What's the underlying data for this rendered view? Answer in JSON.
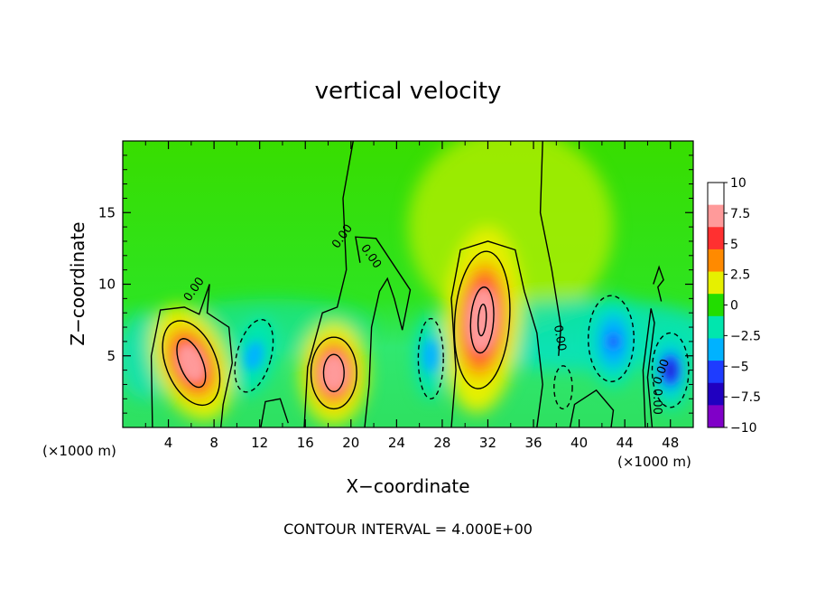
{
  "chart_data": {
    "type": "heatmap",
    "title": "vertical velocity",
    "xlabel": "X−coordinate",
    "ylabel": "Z−coordinate",
    "x_unit": "(×1000 m)",
    "y_unit": "(×1000 m)",
    "footnote": "CONTOUR INTERVAL = 4.000E+00",
    "xlim": [
      0,
      50
    ],
    "ylim": [
      0,
      20
    ],
    "x_ticks": [
      4,
      8,
      12,
      16,
      20,
      24,
      28,
      32,
      36,
      40,
      44,
      48
    ],
    "y_ticks": [
      5,
      10,
      15
    ],
    "colorbar": {
      "range": [
        -10,
        10
      ],
      "tick_values": [
        10,
        7.5,
        5,
        2.5,
        0,
        -2.5,
        -5,
        -7.5,
        -10
      ],
      "tick_labels": [
        "10",
        "7.5",
        "5",
        "2.5",
        "0",
        "−2.5",
        "−5",
        "−7.5",
        "−10"
      ],
      "colors": [
        "#ffffff",
        "#ff9a9a",
        "#ff3030",
        "#ff8a00",
        "#e6f000",
        "#22dd00",
        "#00e6ae",
        "#00b2ff",
        "#1e3cff",
        "#2000c0",
        "#8000c8"
      ]
    },
    "contour_interval": 4,
    "contour_labels": [
      "0.00"
    ],
    "features": [
      {
        "kind": "updraft",
        "x": 6,
        "z": 4.5,
        "peak": 9.5
      },
      {
        "kind": "updraft",
        "x": 18.5,
        "z": 3.8,
        "peak": 10
      },
      {
        "kind": "updraft",
        "x": 31.5,
        "z": 7.5,
        "peak": 10
      },
      {
        "kind": "downdraft",
        "x": 11.5,
        "z": 5,
        "peak": -4.5
      },
      {
        "kind": "downdraft",
        "x": 27,
        "z": 5,
        "peak": -5
      },
      {
        "kind": "downdraft",
        "x": 43,
        "z": 6,
        "peak": -6
      },
      {
        "kind": "downdraft",
        "x": 48,
        "z": 4,
        "peak": -8
      }
    ]
  }
}
